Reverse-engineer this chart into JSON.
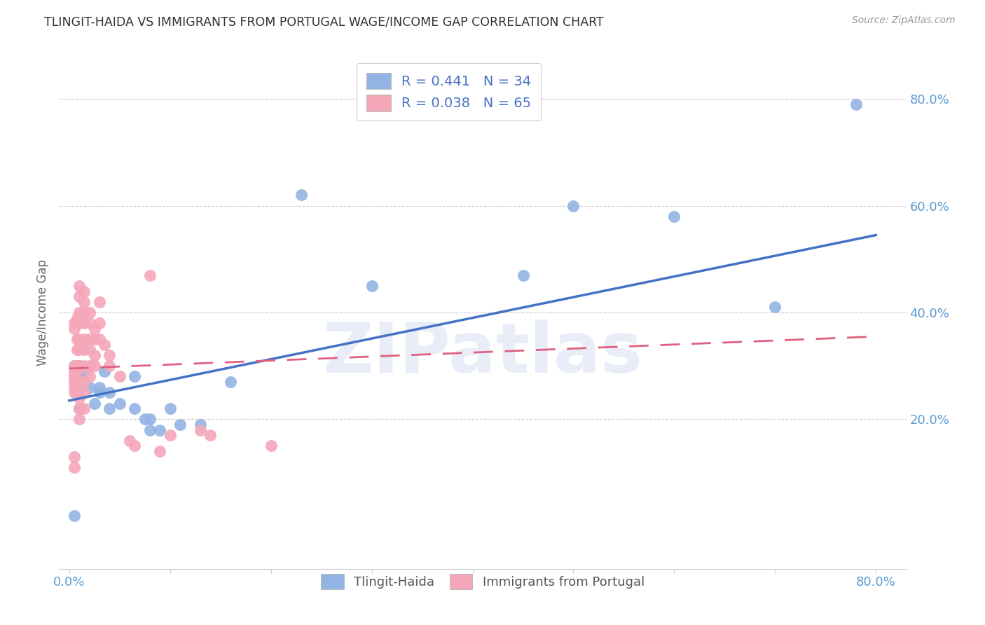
{
  "title": "TLINGIT-HAIDA VS IMMIGRANTS FROM PORTUGAL WAGE/INCOME GAP CORRELATION CHART",
  "source": "Source: ZipAtlas.com",
  "ylabel": "Wage/Income Gap",
  "watermark": "ZIPatlas",
  "legend_blue_R": "R = 0.441",
  "legend_blue_N": "N = 34",
  "legend_pink_R": "R = 0.038",
  "legend_pink_N": "N = 65",
  "legend_blue_label": "Tlingit-Haida",
  "legend_pink_label": "Immigrants from Portugal",
  "xlim": [
    -0.01,
    0.83
  ],
  "ylim": [
    -0.08,
    0.88
  ],
  "xticks_shown": [
    0.0,
    0.8
  ],
  "xticks_minor": [
    0.1,
    0.2,
    0.3,
    0.4,
    0.5,
    0.6,
    0.7
  ],
  "yticks": [
    0.2,
    0.4,
    0.6,
    0.8
  ],
  "xticklabels_shown": [
    "0.0%",
    "80.0%"
  ],
  "yticklabels": [
    "20.0%",
    "40.0%",
    "60.0%",
    "80.0%"
  ],
  "blue_color": "#92b4e3",
  "pink_color": "#f4a7b9",
  "blue_line_color": "#4472c4",
  "pink_line_color": "#e06080",
  "grid_color": "#cccccc",
  "title_color": "#333333",
  "tick_color": "#5b9bd5",
  "blue_scatter": [
    [
      0.005,
      0.28
    ],
    [
      0.005,
      0.3
    ],
    [
      0.005,
      0.02
    ],
    [
      0.01,
      0.27
    ],
    [
      0.01,
      0.26
    ],
    [
      0.01,
      0.3
    ],
    [
      0.01,
      0.28
    ],
    [
      0.01,
      0.22
    ],
    [
      0.015,
      0.29
    ],
    [
      0.02,
      0.26
    ],
    [
      0.025,
      0.23
    ],
    [
      0.03,
      0.26
    ],
    [
      0.03,
      0.25
    ],
    [
      0.035,
      0.29
    ],
    [
      0.04,
      0.25
    ],
    [
      0.04,
      0.22
    ],
    [
      0.05,
      0.23
    ],
    [
      0.065,
      0.28
    ],
    [
      0.065,
      0.22
    ],
    [
      0.075,
      0.2
    ],
    [
      0.08,
      0.2
    ],
    [
      0.08,
      0.18
    ],
    [
      0.09,
      0.18
    ],
    [
      0.1,
      0.22
    ],
    [
      0.11,
      0.19
    ],
    [
      0.13,
      0.19
    ],
    [
      0.16,
      0.27
    ],
    [
      0.23,
      0.62
    ],
    [
      0.3,
      0.45
    ],
    [
      0.45,
      0.47
    ],
    [
      0.5,
      0.6
    ],
    [
      0.6,
      0.58
    ],
    [
      0.7,
      0.41
    ],
    [
      0.78,
      0.79
    ]
  ],
  "pink_scatter": [
    [
      0.005,
      0.28
    ],
    [
      0.005,
      0.29
    ],
    [
      0.005,
      0.3
    ],
    [
      0.005,
      0.27
    ],
    [
      0.005,
      0.37
    ],
    [
      0.005,
      0.38
    ],
    [
      0.005,
      0.26
    ],
    [
      0.005,
      0.25
    ],
    [
      0.005,
      0.13
    ],
    [
      0.005,
      0.11
    ],
    [
      0.008,
      0.39
    ],
    [
      0.008,
      0.38
    ],
    [
      0.008,
      0.35
    ],
    [
      0.008,
      0.33
    ],
    [
      0.008,
      0.3
    ],
    [
      0.008,
      0.29
    ],
    [
      0.008,
      0.27
    ],
    [
      0.008,
      0.26
    ],
    [
      0.008,
      0.25
    ],
    [
      0.01,
      0.45
    ],
    [
      0.01,
      0.43
    ],
    [
      0.01,
      0.4
    ],
    [
      0.01,
      0.38
    ],
    [
      0.01,
      0.35
    ],
    [
      0.01,
      0.33
    ],
    [
      0.01,
      0.3
    ],
    [
      0.01,
      0.27
    ],
    [
      0.01,
      0.24
    ],
    [
      0.01,
      0.22
    ],
    [
      0.01,
      0.2
    ],
    [
      0.015,
      0.44
    ],
    [
      0.015,
      0.42
    ],
    [
      0.015,
      0.4
    ],
    [
      0.015,
      0.38
    ],
    [
      0.015,
      0.35
    ],
    [
      0.015,
      0.33
    ],
    [
      0.015,
      0.3
    ],
    [
      0.015,
      0.27
    ],
    [
      0.015,
      0.25
    ],
    [
      0.015,
      0.22
    ],
    [
      0.02,
      0.4
    ],
    [
      0.02,
      0.38
    ],
    [
      0.02,
      0.35
    ],
    [
      0.02,
      0.33
    ],
    [
      0.02,
      0.3
    ],
    [
      0.02,
      0.28
    ],
    [
      0.025,
      0.37
    ],
    [
      0.025,
      0.35
    ],
    [
      0.025,
      0.32
    ],
    [
      0.025,
      0.3
    ],
    [
      0.03,
      0.42
    ],
    [
      0.03,
      0.38
    ],
    [
      0.03,
      0.35
    ],
    [
      0.035,
      0.34
    ],
    [
      0.04,
      0.32
    ],
    [
      0.04,
      0.3
    ],
    [
      0.05,
      0.28
    ],
    [
      0.06,
      0.16
    ],
    [
      0.065,
      0.15
    ],
    [
      0.08,
      0.47
    ],
    [
      0.09,
      0.14
    ],
    [
      0.1,
      0.17
    ],
    [
      0.13,
      0.18
    ],
    [
      0.14,
      0.17
    ],
    [
      0.2,
      0.15
    ]
  ],
  "blue_trendline": [
    [
      0.0,
      0.235
    ],
    [
      0.8,
      0.545
    ]
  ],
  "pink_trendline": [
    [
      0.0,
      0.295
    ],
    [
      0.8,
      0.355
    ]
  ],
  "background_color": "#ffffff",
  "plot_bg_color": "#ffffff"
}
